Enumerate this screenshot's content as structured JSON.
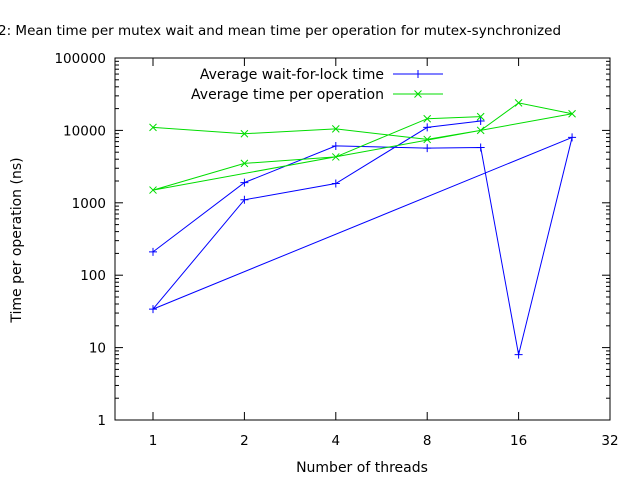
{
  "chart_data": {
    "type": "line",
    "title": "2: Mean time per mutex wait and mean time per operation for mutex-synchronized",
    "xlabel": "Number of threads",
    "ylabel": "Time per operation (ns)",
    "x_scale": "log2",
    "y_scale": "log10",
    "xlim": [
      1,
      32
    ],
    "ylim": [
      1,
      100000
    ],
    "x_ticks": [
      1,
      2,
      4,
      8,
      16,
      32
    ],
    "y_ticks": [
      1,
      10,
      100,
      1000,
      10000,
      100000
    ],
    "legend_position": "top-left",
    "series": [
      {
        "name": "Average wait-for-lock time",
        "color": "#0000ff",
        "marker": "plus",
        "points": [
          [
            1,
            210
          ],
          [
            2,
            1900
          ],
          [
            4,
            6100
          ],
          [
            8,
            5700
          ],
          [
            12,
            5800
          ],
          [
            16,
            8
          ],
          [
            24,
            8000
          ],
          [
            1,
            34
          ],
          [
            2,
            1100
          ],
          [
            4,
            1850
          ],
          [
            8,
            11000
          ],
          [
            12,
            13500
          ]
        ]
      },
      {
        "name": "Average time per operation",
        "color": "#00dd00",
        "marker": "x",
        "points": [
          [
            1,
            11000
          ],
          [
            2,
            9000
          ],
          [
            4,
            10500
          ],
          [
            8,
            7500
          ],
          [
            12,
            10000
          ],
          [
            16,
            24000
          ],
          [
            24,
            17000
          ],
          [
            1,
            1500
          ],
          [
            2,
            3500
          ],
          [
            4,
            4300
          ],
          [
            8,
            14500
          ],
          [
            12,
            15500
          ]
        ]
      }
    ]
  }
}
